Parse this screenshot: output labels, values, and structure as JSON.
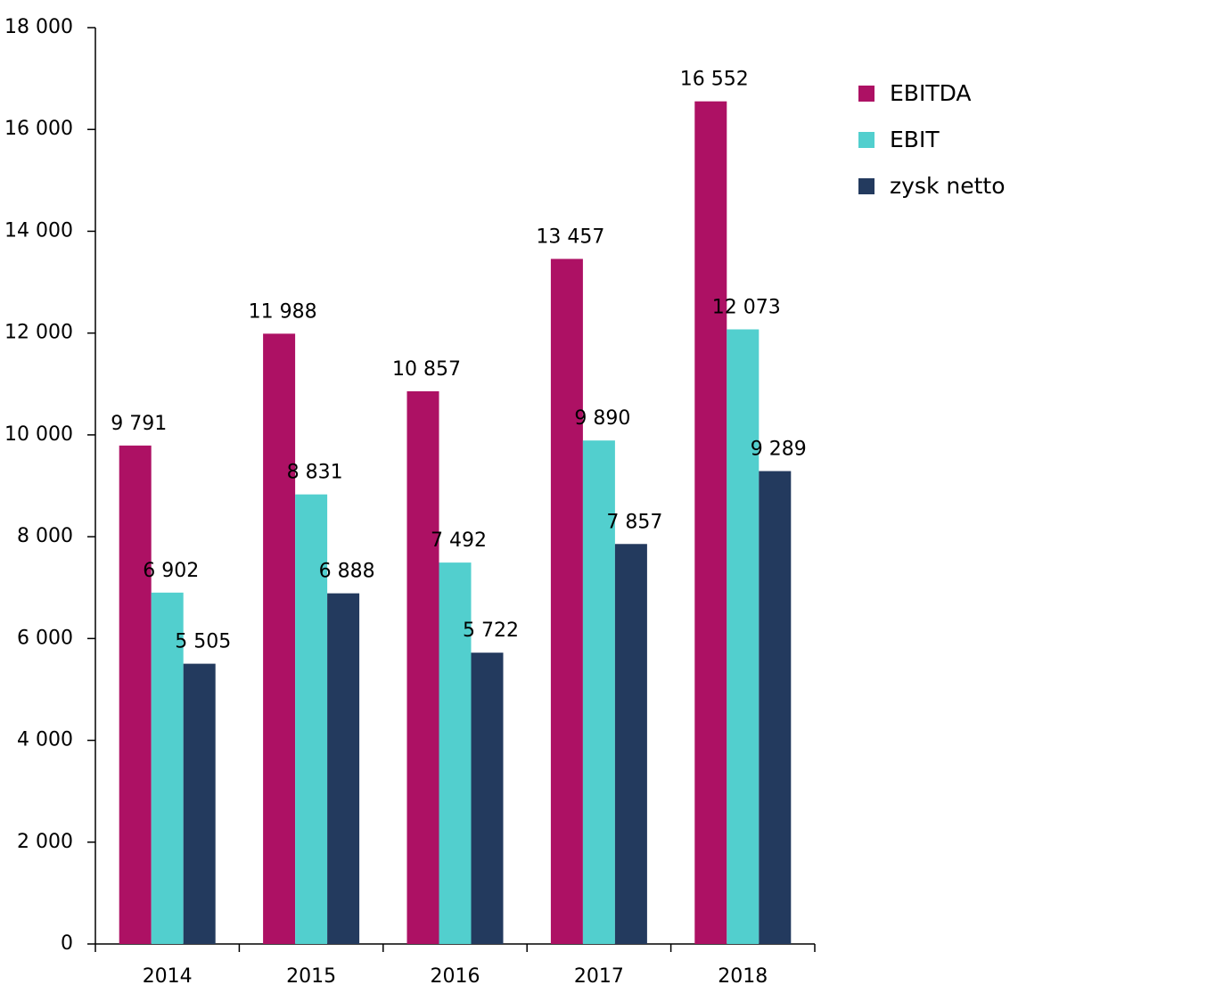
{
  "chart_data": {
    "type": "bar",
    "categories": [
      "2014",
      "2015",
      "2016",
      "2017",
      "2018"
    ],
    "series": [
      {
        "name": "EBITDA",
        "color": "#ad1164",
        "values": [
          9791,
          11988,
          10857,
          13457,
          16552
        ],
        "labels": [
          "9 791",
          "11 988",
          "10 857",
          "13 457",
          "16 552"
        ]
      },
      {
        "name": "EBIT",
        "color": "#52cfce",
        "values": [
          6902,
          8831,
          7492,
          9890,
          12073
        ],
        "labels": [
          "6 902",
          "8 831",
          "7 492",
          "9 890",
          "12 073"
        ]
      },
      {
        "name": "zysk netto",
        "color": "#233a5e",
        "values": [
          5505,
          6888,
          5722,
          7857,
          9289
        ],
        "labels": [
          "5 505",
          "6 888",
          "5 722",
          "7 857",
          "9 289"
        ]
      }
    ],
    "ylim": [
      0,
      18000
    ],
    "yticks": [
      0,
      2000,
      4000,
      6000,
      8000,
      10000,
      12000,
      14000,
      16000,
      18000
    ],
    "ytick_labels": [
      "0",
      "2 000",
      "4 000",
      "6 000",
      "8 000",
      "10 000",
      "12 000",
      "14 000",
      "16 000",
      "18 000"
    ],
    "grid": false,
    "legend": "top-right"
  }
}
